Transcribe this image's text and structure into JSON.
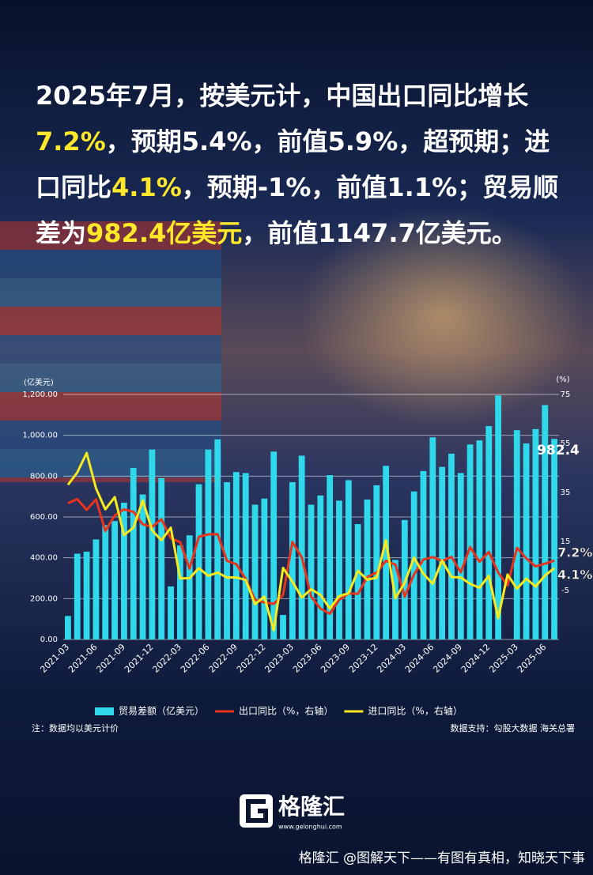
{
  "headline": [
    {
      "text": "2025年7月，按美元计，中国出口同比增长",
      "highlight": false
    },
    {
      "text": "7.2%",
      "highlight": true
    },
    {
      "text": "，预期5.4%，前值5.9%，超预期；进口同比",
      "highlight": false
    },
    {
      "text": "4.1%",
      "highlight": true
    },
    {
      "text": "，预期-1%，前值1.1%；贸易顺差为",
      "highlight": false
    },
    {
      "text": "982.4亿美元",
      "highlight": true
    },
    {
      "text": "，前值1147.7亿美元。",
      "highlight": false
    }
  ],
  "chart_data": {
    "type": "combo",
    "y_unit": "(亿美元)",
    "y2_unit": "(%)",
    "categories": [
      "2021-03",
      null,
      null,
      "2021-06",
      null,
      null,
      "2021-09",
      null,
      null,
      "2021-12",
      null,
      null,
      "2022-03",
      null,
      null,
      "2022-06",
      null,
      null,
      "2022-09",
      null,
      null,
      "2022-12",
      null,
      null,
      "2023-03",
      null,
      null,
      "2023-06",
      null,
      null,
      "2023-09",
      null,
      null,
      "2023-12",
      null,
      null,
      "2024-03",
      null,
      null,
      "2024-06",
      null,
      null,
      "2024-09",
      null,
      null,
      "2024-12",
      null,
      null,
      "2025-03",
      null,
      null,
      "2025-06",
      null
    ],
    "ylim": [
      0,
      1200
    ],
    "yticks": [
      {
        "value": 0,
        "label": "0.00"
      },
      {
        "value": 200,
        "label": "200.00"
      },
      {
        "value": 400,
        "label": "400.00"
      },
      {
        "value": 600,
        "label": "600.00"
      },
      {
        "value": 800,
        "label": "800.00"
      },
      {
        "value": 1000,
        "label": "1,000.00"
      },
      {
        "value": 1200,
        "label": "1,200.00"
      }
    ],
    "y2lim": [
      -25,
      75
    ],
    "y2ticks": [
      -5,
      15,
      35,
      55,
      75
    ],
    "grid": true,
    "series": [
      {
        "name": "贸易差额（亿美元）",
        "type": "bar",
        "color": "#2fd8ea",
        "values": [
          115,
          420,
          430,
          490,
          560,
          580,
          670,
          840,
          710,
          930,
          790,
          260,
          460,
          510,
          760,
          930,
          980,
          770,
          820,
          815,
          660,
          690,
          920,
          120,
          770,
          900,
          660,
          705,
          805,
          680,
          780,
          565,
          685,
          755,
          850,
          390,
          585,
          725,
          825,
          990,
          845,
          910,
          815,
          955,
          975,
          1045,
          1195,
          null,
          1025,
          960,
          1030,
          1147.7,
          982.4
        ],
        "value_labels": [
          null,
          null,
          null,
          null,
          null,
          null,
          null,
          null,
          null,
          null,
          null,
          null,
          null,
          null,
          null,
          null,
          null,
          null,
          null,
          null,
          null,
          null,
          null,
          null,
          null,
          null,
          null,
          null,
          null,
          null,
          null,
          null,
          null,
          null,
          null,
          null,
          null,
          null,
          null,
          null,
          null,
          null,
          null,
          null,
          null,
          null,
          null,
          null,
          null,
          null,
          null,
          null,
          "982.4"
        ]
      },
      {
        "name": "出口同比（%，右轴）",
        "type": "line",
        "axis": "y2",
        "color": "#e8341c",
        "values": [
          30.6,
          32.3,
          27.9,
          32.2,
          19.3,
          25.6,
          28.1,
          27.1,
          22,
          20.9,
          24.1,
          16.3,
          14.7,
          3.9,
          16.9,
          17.9,
          18,
          7.1,
          5.7,
          -0.3,
          -8.7,
          -9.9,
          -10.5,
          -6.8,
          14.8,
          8.5,
          -7.5,
          -12.4,
          -14.5,
          -8.8,
          -6.2,
          -6.4,
          0.5,
          2.3,
          7.1,
          5.6,
          -7.5,
          1.5,
          7.6,
          8.6,
          7,
          8.7,
          2.4,
          12.7,
          6.7,
          10.7,
          2.3,
          -3,
          12.4,
          8.1,
          4.8,
          5.9,
          7.2
        ],
        "value_labels": [
          null,
          null,
          null,
          null,
          null,
          null,
          null,
          null,
          null,
          null,
          null,
          null,
          null,
          null,
          null,
          null,
          null,
          null,
          null,
          null,
          null,
          null,
          null,
          null,
          null,
          null,
          null,
          null,
          null,
          null,
          null,
          null,
          null,
          null,
          null,
          null,
          null,
          null,
          null,
          null,
          null,
          null,
          null,
          null,
          null,
          null,
          null,
          null,
          null,
          null,
          null,
          null,
          "7.2%"
        ]
      },
      {
        "name": "进口同比（%，右轴）",
        "type": "line",
        "axis": "y2",
        "color": "#f7ea1f",
        "values": [
          38.1,
          43.1,
          51.1,
          36.7,
          28.1,
          33.1,
          17.6,
          20.6,
          31.7,
          19.5,
          15.5,
          20.6,
          -0.1,
          0,
          4.1,
          1,
          2.3,
          0.3,
          0.3,
          -0.7,
          -10.6,
          -7.5,
          -21.3,
          4.2,
          -1.4,
          -7.9,
          -4.5,
          -6.8,
          -12.4,
          -7.3,
          -6.2,
          3,
          -0.6,
          0.2,
          15.5,
          -8.2,
          -1.9,
          8.4,
          1.8,
          -2.3,
          7.2,
          0.5,
          0.3,
          -2.3,
          -3.9,
          1,
          -16.3,
          1.5,
          -4.3,
          -0.2,
          -3.4,
          1.1,
          4.1
        ],
        "value_labels": [
          null,
          null,
          null,
          null,
          null,
          null,
          null,
          null,
          null,
          null,
          null,
          null,
          null,
          null,
          null,
          null,
          null,
          null,
          null,
          null,
          null,
          null,
          null,
          null,
          null,
          null,
          null,
          null,
          null,
          null,
          null,
          null,
          null,
          null,
          null,
          null,
          null,
          null,
          null,
          null,
          null,
          null,
          null,
          null,
          null,
          null,
          null,
          null,
          null,
          null,
          null,
          null,
          "4.1%"
        ]
      }
    ],
    "note": "注：数据均以美元计价",
    "source": "数据支持：勾股大数据 海关总署"
  },
  "logo": {
    "name": "格隆汇",
    "url": "www.gelonghui.com"
  },
  "footer": "格隆汇 @图解天下——有图有真相，知晓天下事"
}
